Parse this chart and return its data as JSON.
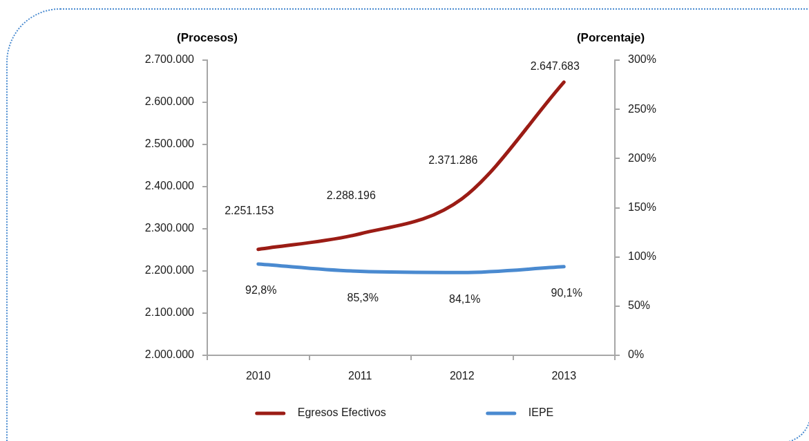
{
  "chart_data": {
    "type": "line",
    "categories": [
      "2010",
      "2011",
      "2012",
      "2013"
    ],
    "series": [
      {
        "name": "Egresos Efectivos",
        "color": "#9b1c15",
        "values": [
          2251153,
          2288196,
          2371286,
          2647683
        ],
        "value_labels": [
          "2.251.153",
          "2.288.196",
          "2.371.286",
          "2.647.683"
        ]
      },
      {
        "name": "IEPE",
        "color": "#4a8ad0",
        "axis": "y2",
        "values": [
          92.8,
          85.3,
          84.1,
          90.1
        ],
        "value_labels": [
          "92,8%",
          "85,3%",
          "84,1%",
          "90,1%"
        ]
      }
    ],
    "ylabel": "(Procesos)",
    "y2label": "(Porcentaje)",
    "ylim": [
      2000000,
      2700000
    ],
    "yticks": [
      {
        "value": 2000000,
        "label": "2.000.000"
      },
      {
        "value": 2100000,
        "label": "2.100.000"
      },
      {
        "value": 2200000,
        "label": "2.200.000"
      },
      {
        "value": 2300000,
        "label": "2.300.000"
      },
      {
        "value": 2400000,
        "label": "2.400.000"
      },
      {
        "value": 2500000,
        "label": "2.500.000"
      },
      {
        "value": 2600000,
        "label": "2.600.000"
      },
      {
        "value": 2700000,
        "label": "2.700.000"
      }
    ],
    "y2lim": [
      0,
      300
    ],
    "y2ticks": [
      {
        "value": 0,
        "label": "0%"
      },
      {
        "value": 50,
        "label": "50%"
      },
      {
        "value": 100,
        "label": "100%"
      },
      {
        "value": 150,
        "label": "150%"
      },
      {
        "value": 200,
        "label": "200%"
      },
      {
        "value": 250,
        "label": "250%"
      },
      {
        "value": 300,
        "label": "300%"
      }
    ],
    "grid": false,
    "legend": "bottom",
    "marker": "none",
    "line_style": "solid"
  }
}
